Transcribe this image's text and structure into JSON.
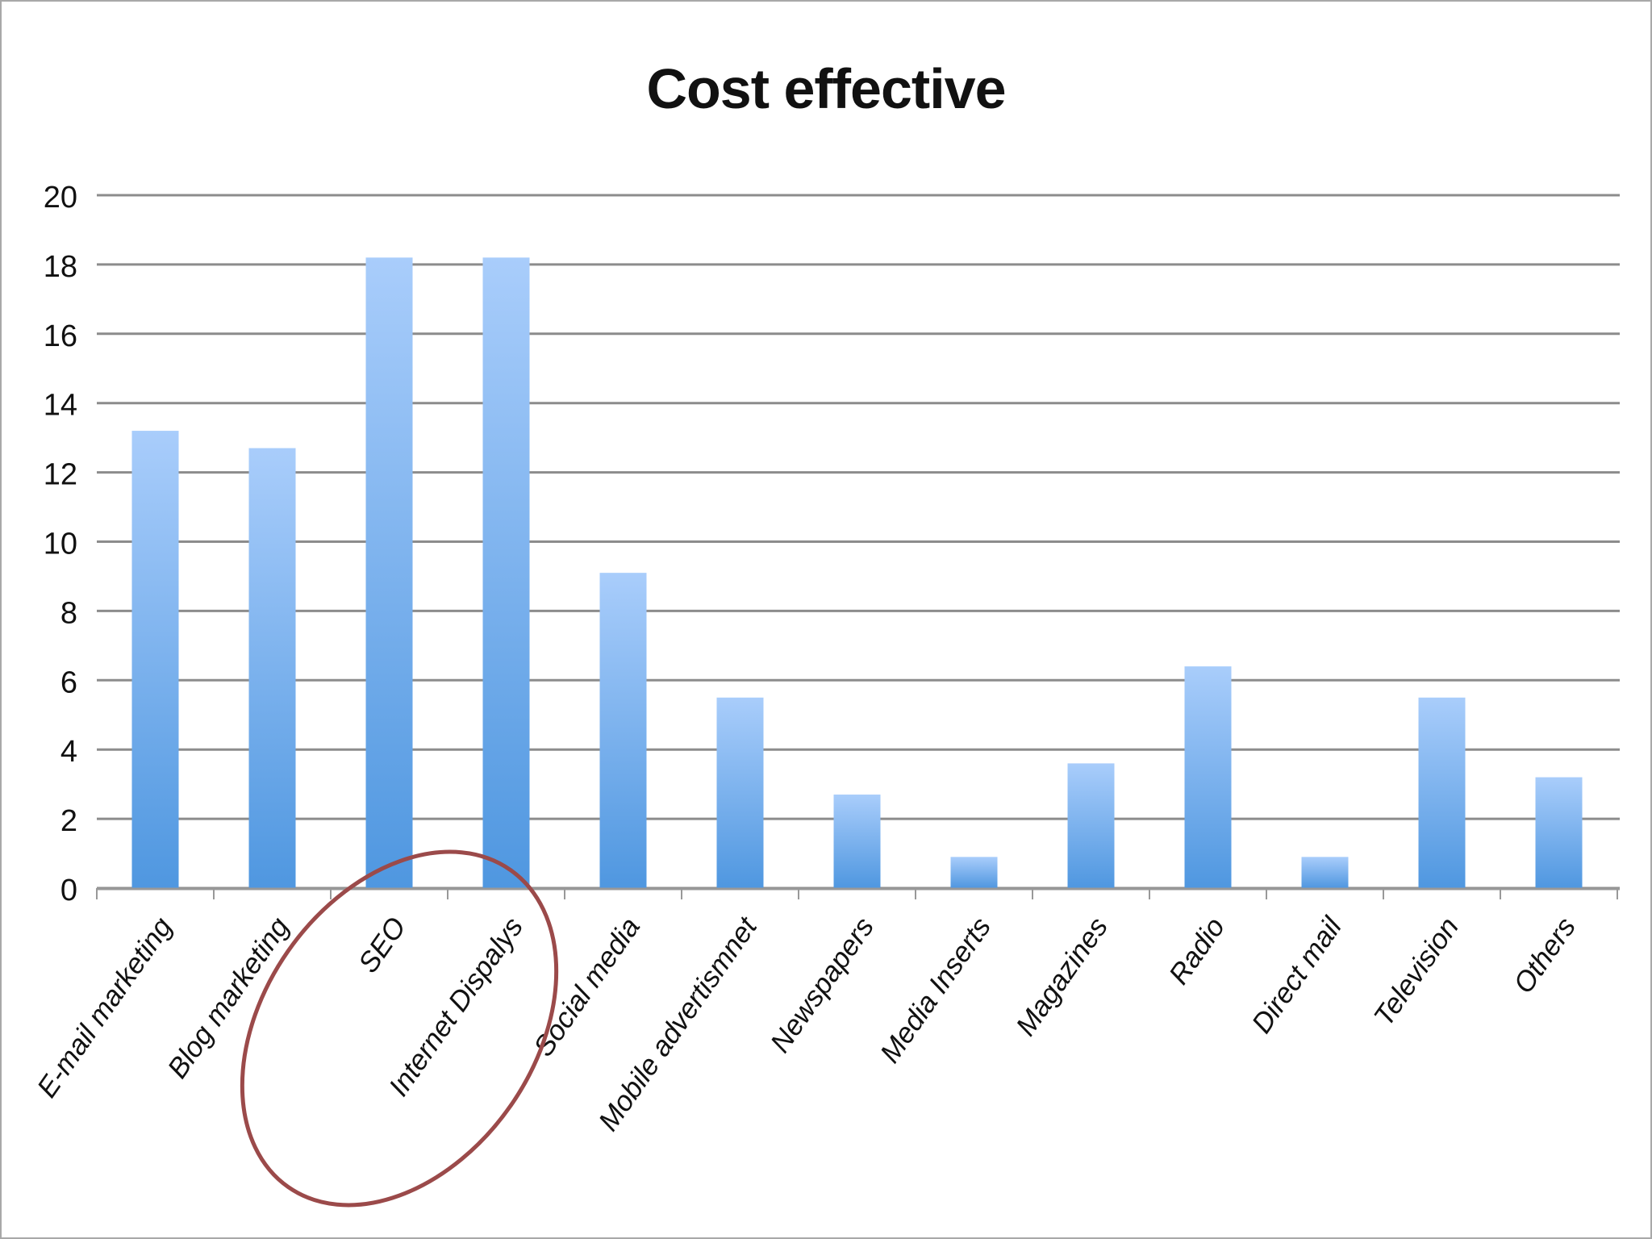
{
  "chart_data": {
    "type": "bar",
    "title": "Cost effective",
    "xlabel": "",
    "ylabel": "",
    "categories": [
      "E-mail marketing",
      "Blog marketing",
      "SEO",
      "Internet Dispalys",
      "Social media",
      "Mobile advertismnet",
      "Newspapers",
      "Media Inserts",
      "Magazines",
      "Radio",
      "Direct mail",
      "Television",
      "Others"
    ],
    "values": [
      13.2,
      12.7,
      18.2,
      18.2,
      9.1,
      5.5,
      2.7,
      0.9,
      3.6,
      6.4,
      0.9,
      5.5,
      3.2
    ],
    "ylim": [
      0,
      20
    ],
    "yticks": [
      "0",
      "2",
      "4",
      "6",
      "8",
      "10",
      "12",
      "14",
      "16",
      "18",
      "20"
    ],
    "grid": true,
    "legend": "none",
    "annotation": {
      "shape": "ellipse",
      "encloses": [
        "SEO",
        "Internet Dispalys"
      ],
      "color": "#9b4a4a"
    },
    "colors": {
      "bar_top": "#a9cdfb",
      "bar_bottom": "#4f97e0",
      "grid": "#8c8c8c",
      "axis": "#999999",
      "annotation": "#9b4a4a"
    }
  }
}
